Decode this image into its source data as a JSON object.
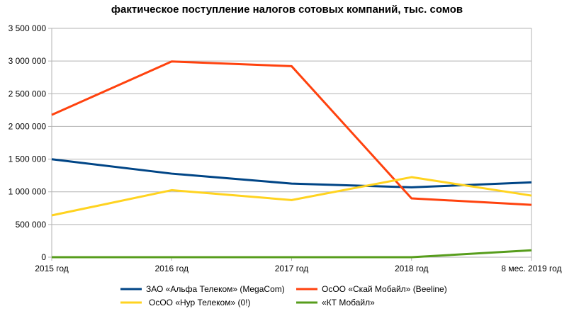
{
  "chart_data": {
    "type": "line",
    "title": "фактическое поступление налогов сотовых компаний, тыс. сомов",
    "categories": [
      "2015 год",
      "2016 год",
      "2017 год",
      "2018 год",
      "8  мес. 2019 год"
    ],
    "ylim": [
      0,
      3500000
    ],
    "yticks": [
      0,
      500000,
      1000000,
      1500000,
      2000000,
      2500000,
      3000000,
      3500000
    ],
    "ytick_labels": [
      "0",
      "500 000",
      "1 000 000",
      "1 500 000",
      "2 000 000",
      "2 500 000",
      "3 000 000",
      "3 500 000"
    ],
    "grid": true,
    "legend_position": "bottom",
    "series": [
      {
        "name": "ЗАО «Альфа Телеком» (MegaCom)",
        "color": "#004586",
        "values": [
          1498000,
          1278000,
          1126000,
          1069000,
          1144000
        ]
      },
      {
        "name": "ОсОО «Скай Мобайл» (Beeline)",
        "color": "#ff420e",
        "values": [
          2177000,
          2993000,
          2921000,
          899000,
          801000
        ]
      },
      {
        "name": "ОсОО «Нур Телеком» (0!)",
        "color": "#ffd320",
        "values": [
          639000,
          1025000,
          874000,
          1224000,
          942000
        ]
      },
      {
        "name": "«КТ Мобайл»",
        "color": "#579d1c",
        "values": [
          0,
          0,
          0,
          0,
          105000
        ]
      }
    ]
  }
}
